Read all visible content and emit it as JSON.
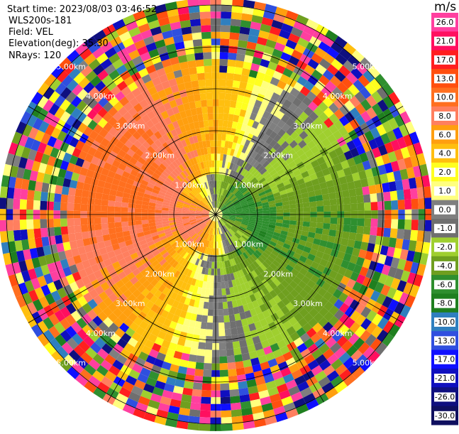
{
  "header": {
    "start_time": "Start time: 2023/08/03 03:46:52",
    "instrument": "WLS200s-181",
    "field": "Field: VEL",
    "elevation": "Elevation(deg): 35.30",
    "nrays": "NRays: 120"
  },
  "colorbar": {
    "unit": "m/s",
    "ticks": [
      "26.0",
      "21.0",
      "17.0",
      "13.0",
      "10.0",
      "8.0",
      "6.0",
      "4.0",
      "2.0",
      "1.0",
      "0.0",
      "-1.0",
      "-2.0",
      "-4.0",
      "-6.0",
      "-8.0",
      "-10.0",
      "-13.0",
      "-17.0",
      "-21.0",
      "-26.0",
      "-30.0"
    ],
    "colors": [
      "#ff3f9f",
      "#ff0f5f",
      "#ff1f1f",
      "#ff4f0f",
      "#ff6f1f",
      "#ff7f5f",
      "#ff9f0f",
      "#ffbf0f",
      "#ffff1f",
      "#ffff7f",
      "#7f7f7f",
      "#6f6f6f",
      "#9fcf2f",
      "#6f9f1f",
      "#2f8f2f",
      "#1f7f1f",
      "#2f7fbf",
      "#2f4fdf",
      "#0f0fff",
      "#0f0fbf",
      "#0f0f7f",
      "#0f0f5f"
    ]
  },
  "chart_data": {
    "type": "heatmap",
    "projection": "polar-ppi",
    "n_rays": 120,
    "range_rings_km": [
      1.0,
      2.0,
      3.0,
      4.0,
      5.0
    ],
    "ring_labels": [
      "1.00km",
      "2.00km",
      "3.00km",
      "4.00km",
      "5.00km"
    ],
    "field": "VEL",
    "units": "m/s",
    "vmin": -30.0,
    "vmax": 26.0,
    "sectors": [
      {
        "name": "W",
        "near_velocity": 8.0,
        "mid_velocity": 6.0
      },
      {
        "name": "N",
        "near_velocity": 0.0,
        "mid_velocity": 4.0
      },
      {
        "name": "E",
        "near_velocity": -8.0,
        "mid_velocity": -4.0
      },
      {
        "name": "S",
        "near_velocity": 2.0,
        "mid_velocity": -2.0
      }
    ],
    "far_field": "noise"
  }
}
